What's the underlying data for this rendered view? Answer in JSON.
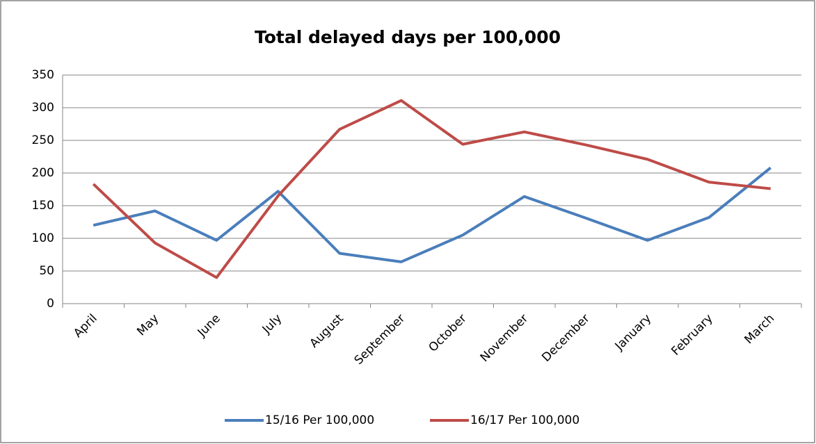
{
  "chart_data": {
    "type": "line",
    "title": "Total delayed days per 100,000",
    "categories": [
      "April",
      "May",
      "June",
      "July",
      "August",
      "September",
      "October",
      "November",
      "December",
      "January",
      "February",
      "March"
    ],
    "series": [
      {
        "name": "15/16 Per 100,000",
        "color": "#4a7ebb",
        "values": [
          120,
          142,
          97,
          172,
          77,
          64,
          105,
          164,
          131,
          97,
          132,
          208
        ]
      },
      {
        "name": "16/17 Per 100,000",
        "color": "#be4b48",
        "values": [
          183,
          93,
          40,
          165,
          267,
          311,
          244,
          263,
          243,
          221,
          186,
          176
        ]
      }
    ],
    "ylim": [
      0,
      350
    ],
    "yticks": [
      0,
      50,
      100,
      150,
      200,
      250,
      300,
      350
    ],
    "grid": true,
    "legend": "bottom"
  }
}
